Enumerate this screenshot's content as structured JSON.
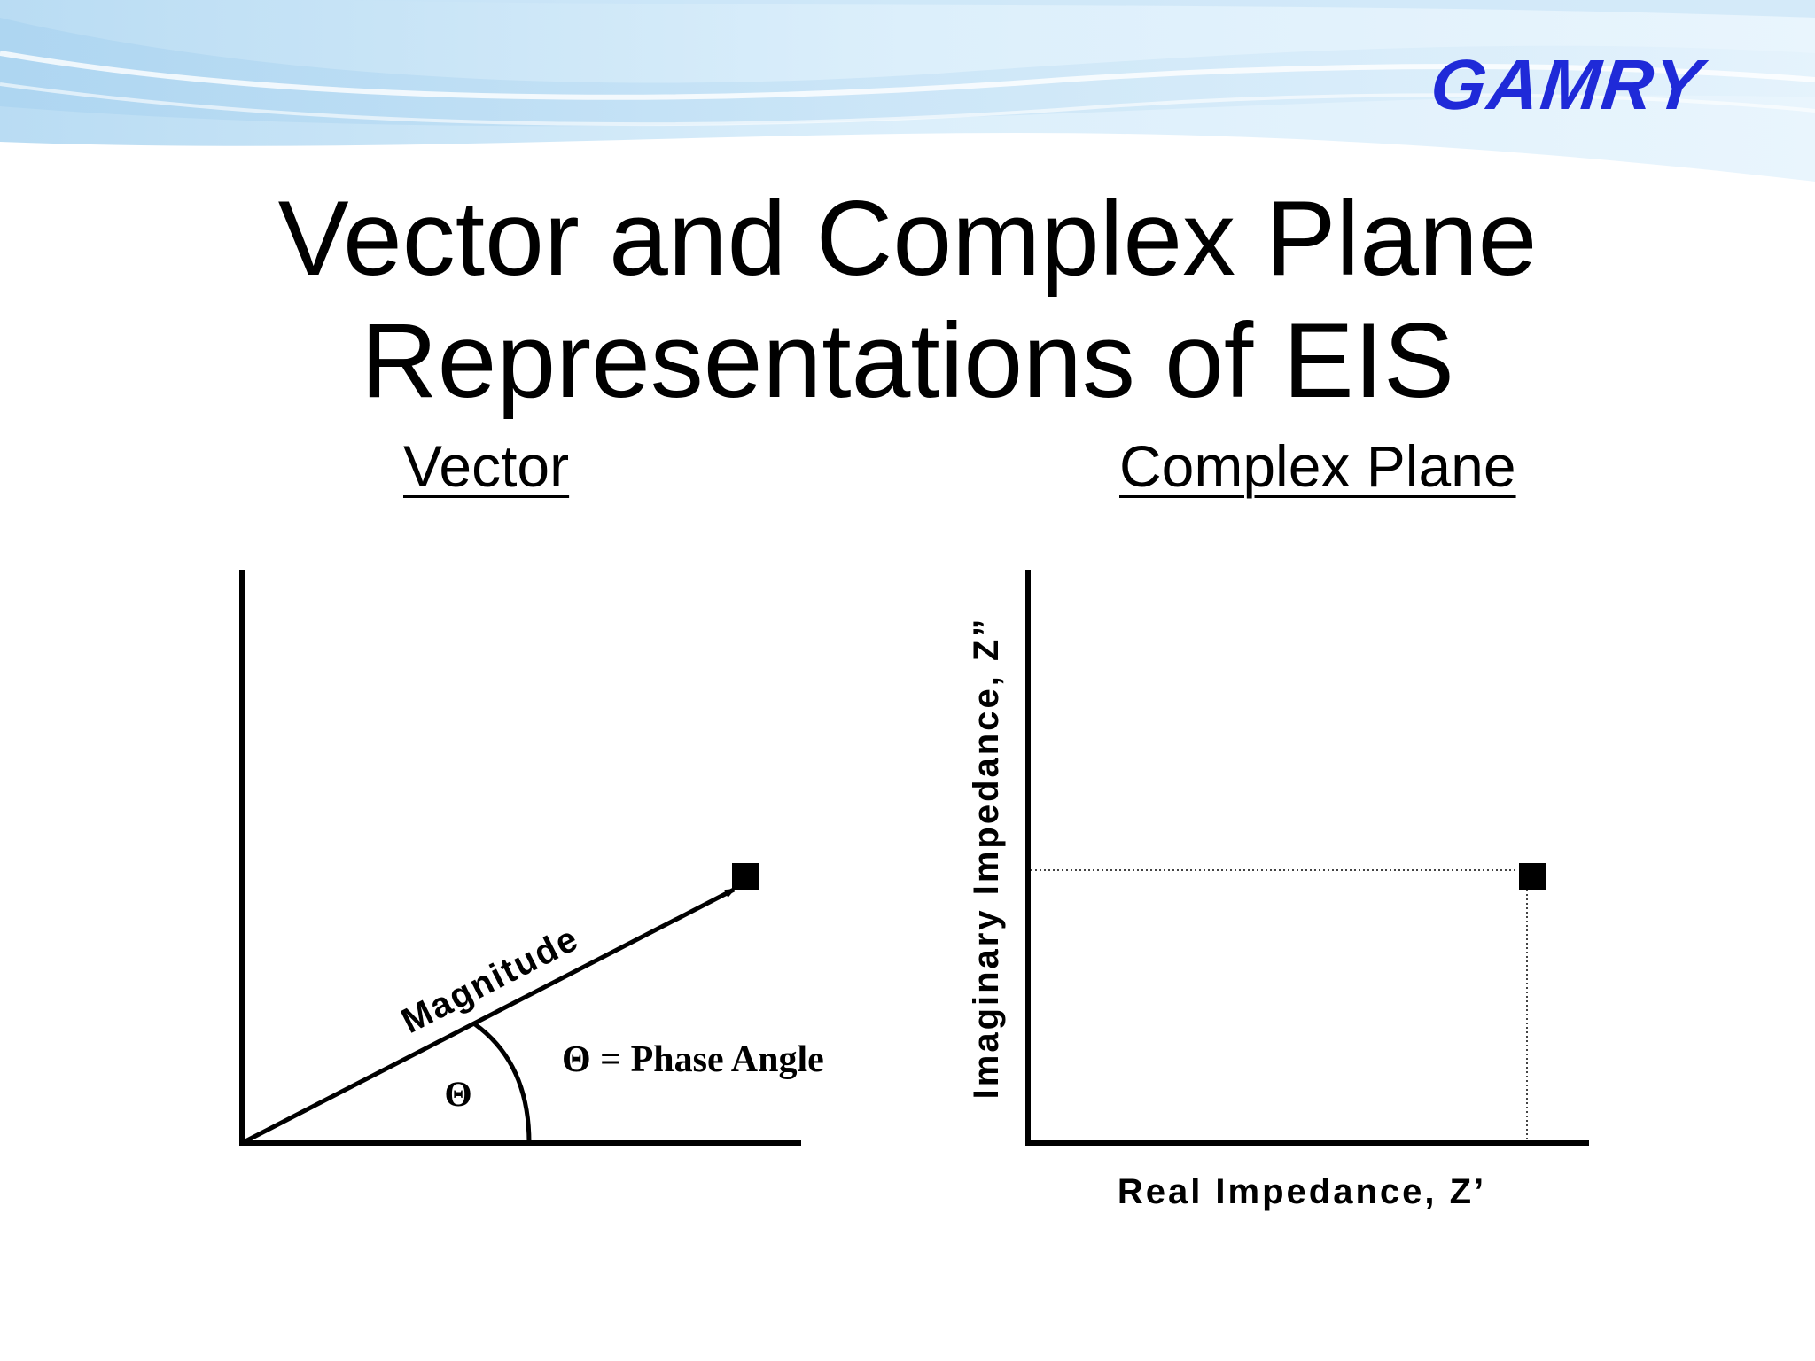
{
  "logo": {
    "text": "GAMRY",
    "brand_color": "#1f2ad8"
  },
  "title": {
    "line1": "Vector and Complex Plane",
    "line2": "Representations of EIS"
  },
  "left_panel": {
    "heading": "Vector",
    "vector_label": "Magnitude",
    "angle_symbol": "Θ",
    "legend": "Θ = Phase Angle"
  },
  "right_panel": {
    "heading": "Complex Plane",
    "x_axis_label": "Real Impedance, Z’",
    "y_axis_label": "Imaginary Impedance, Z”"
  },
  "colors": {
    "background": "#ffffff",
    "ink": "#000000",
    "swoosh": "#cfe8f8"
  }
}
